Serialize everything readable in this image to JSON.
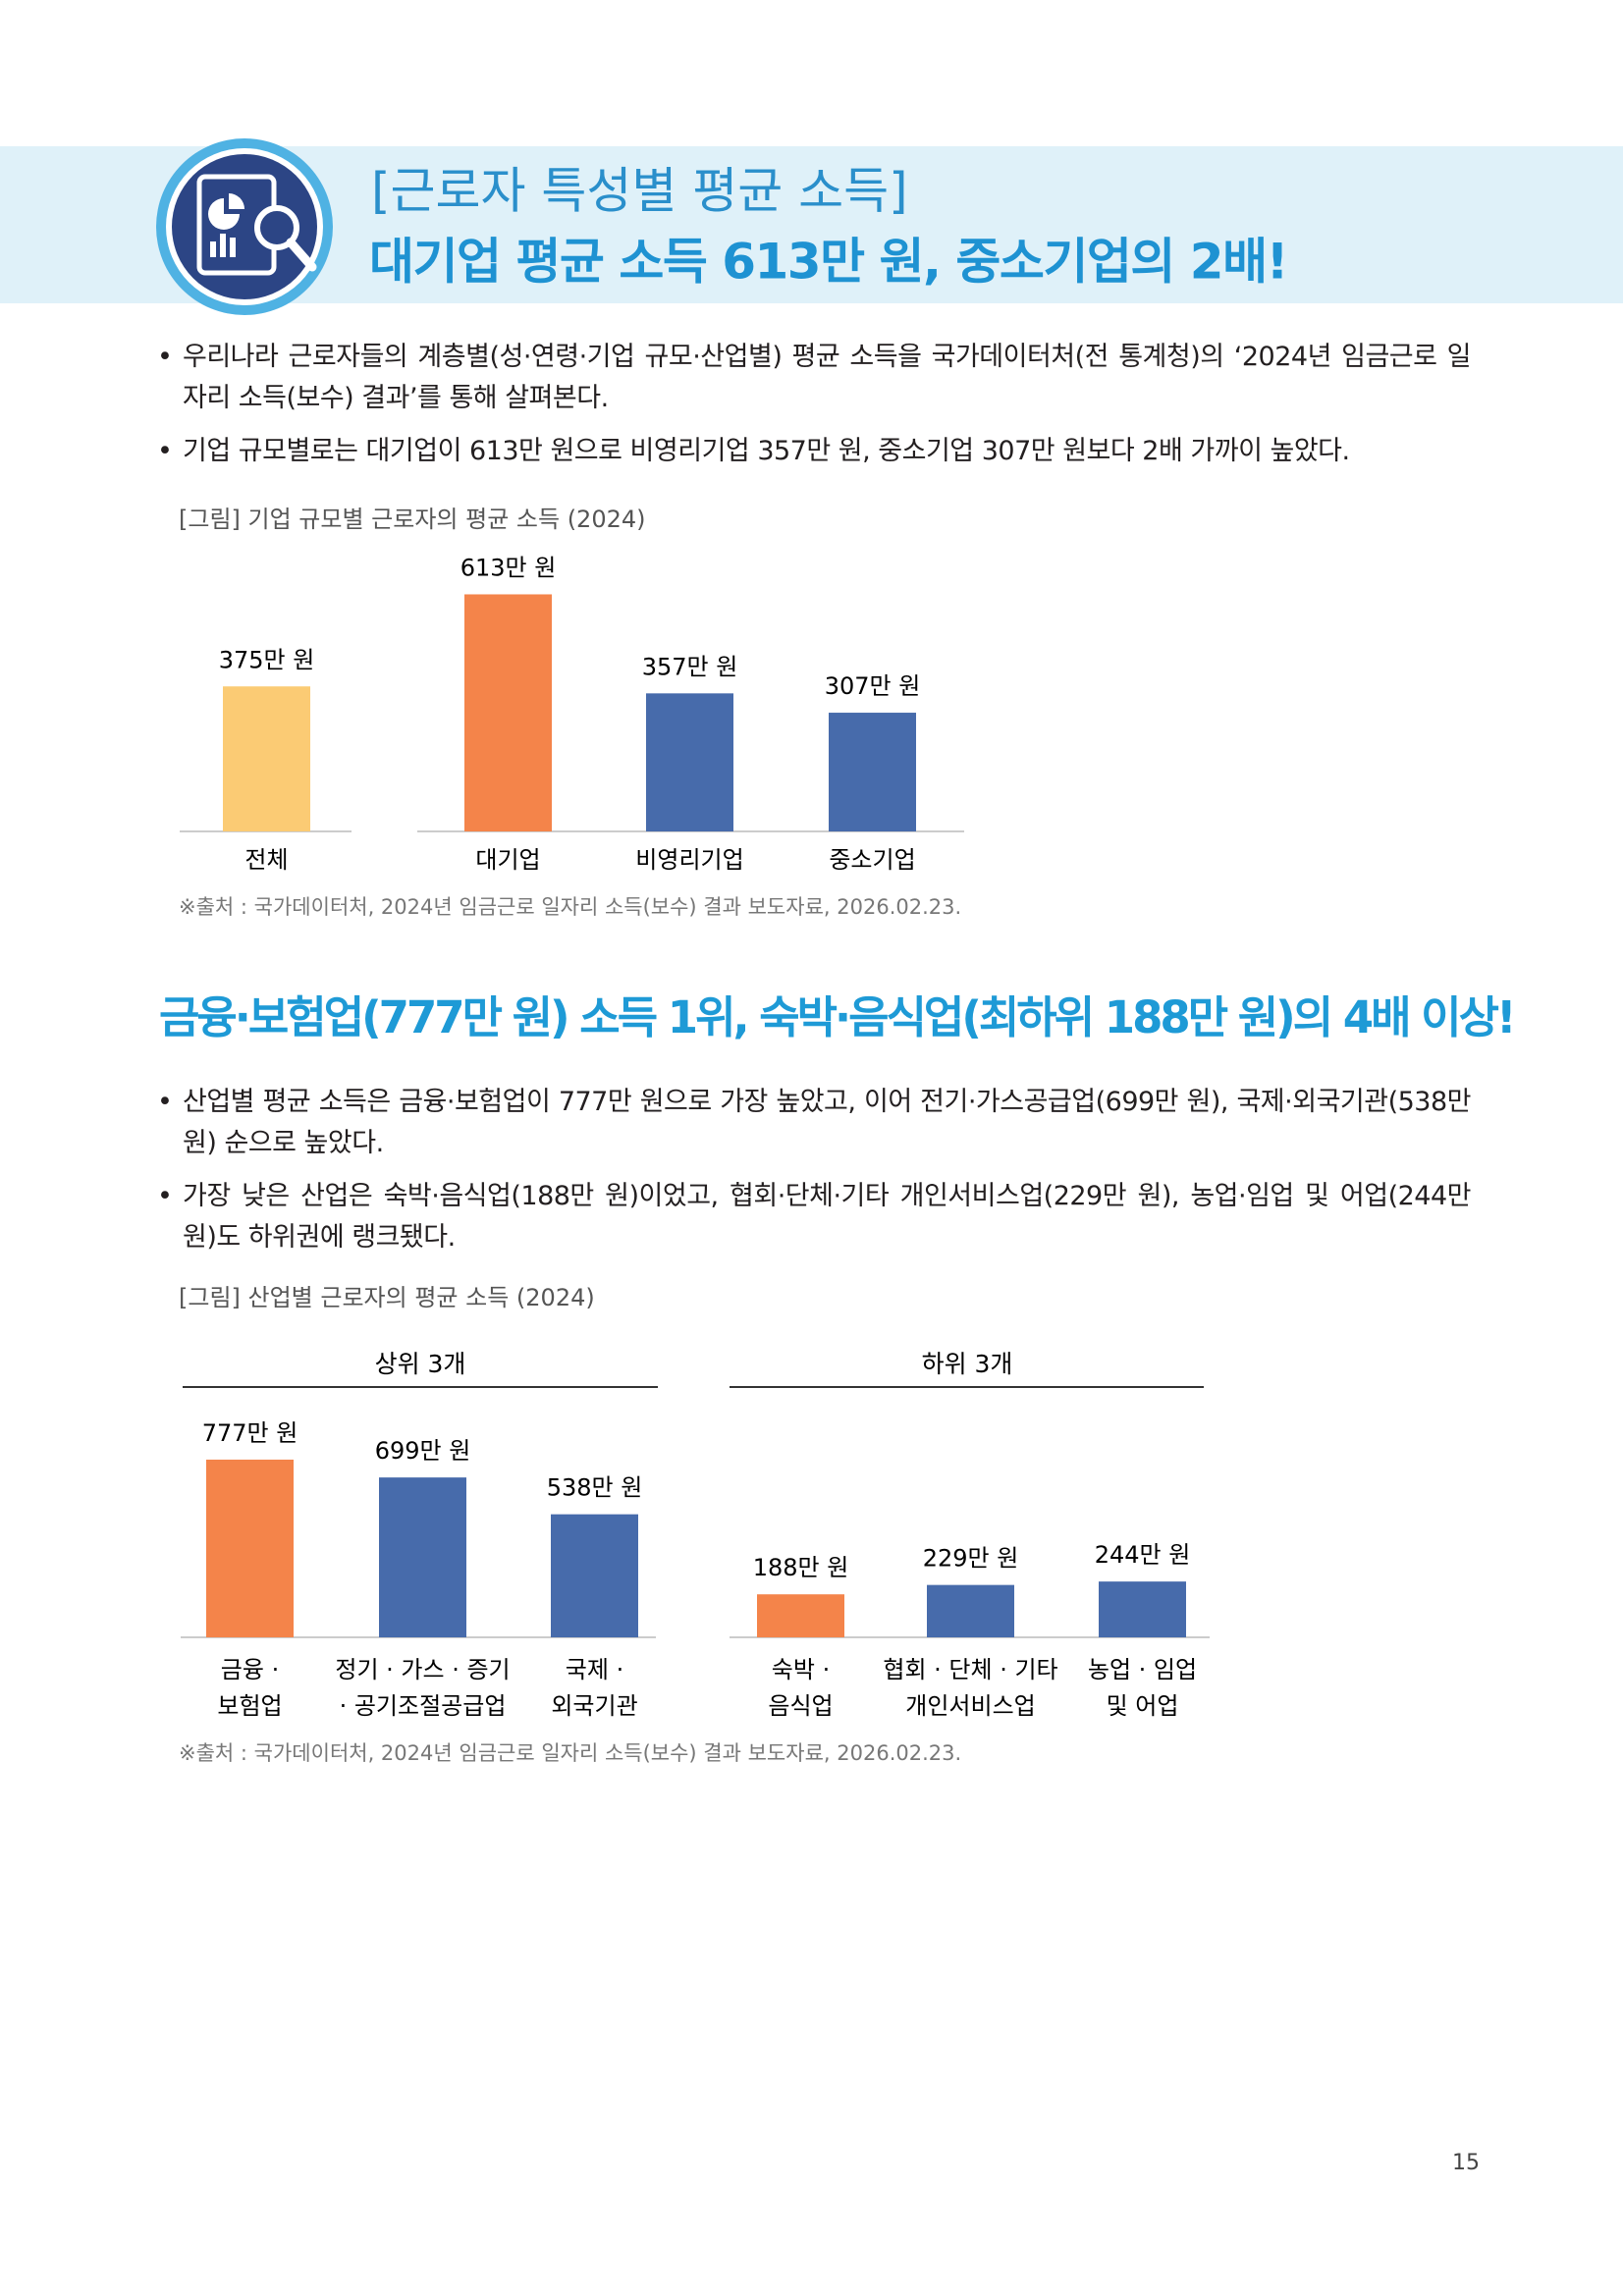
{
  "header": {
    "subtitle": "[근로자 특성별 평균 소득]",
    "title": "대기업 평균 소득 613만 원, 중소기업의 2배!"
  },
  "section1": {
    "bullets": [
      "우리나라 근로자들의 계층별(성·연령·기업 규모·산업별) 평균 소득을 국가데이터처(전 통계청)의 ‘2024년 임금근로 일자리 소득(보수) 결과’를 통해 살펴본다.",
      "기업 규모별로는 대기업이 613만 원으로 비영리기업 357만 원, 중소기업 307만 원보다 2배 가까이 높았다."
    ]
  },
  "section2": {
    "title": "금융·보험업(777만 원) 소득 1위, 숙박·음식업(최하위 188만 원)의 4배 이상!",
    "bullets": [
      "산업별 평균 소득은 금융·보험업이 777만 원으로 가장 높았고, 이어 전기·가스공급업(699만 원), 국제·외국기관(538만 원) 순으로 높았다.",
      "가장 낮은 산업은 숙박·음식업(188만 원)이었고, 협회·단체·기타 개인서비스업(229만 원), 농업·임업 및 어업(244만 원)도 하위권에 랭크됐다."
    ]
  },
  "chart_data": [
    {
      "type": "bar",
      "title": "[그림] 기업 규모별 근로자의 평균 소득 (2024)",
      "categories": [
        [
          "전체"
        ],
        [
          "대기업"
        ],
        [
          "비영리기업"
        ],
        [
          "중소기업"
        ]
      ],
      "values": [
        375,
        613,
        357,
        307
      ],
      "value_labels": [
        "375만 원",
        "613만 원",
        "357만 원",
        "307만 원"
      ],
      "colors": [
        "#fbcb74",
        "#f4844a",
        "#476bab",
        "#476bab"
      ],
      "source": "※출처 : 국가데이터처, 2024년 임금근로 일자리 소득(보수) 결과 보도자료, 2026.02.23."
    },
    {
      "type": "bar",
      "title": "[그림] 산업별 근로자의 평균 소득 (2024)",
      "panels": [
        {
          "subtitle": "상위 3개",
          "categories": [
            [
              "금융 ·",
              "보험업"
            ],
            [
              "정기 · 가스 · 증기",
              "· 공기조절공급업"
            ],
            [
              "국제 ·",
              "외국기관"
            ]
          ],
          "values": [
            777,
            699,
            538
          ],
          "value_labels": [
            "777만 원",
            "699만 원",
            "538만 원"
          ],
          "colors": [
            "#f4844a",
            "#476bab",
            "#476bab"
          ]
        },
        {
          "subtitle": "하위 3개",
          "categories": [
            [
              "숙박 ·",
              "음식업"
            ],
            [
              "협회 · 단체 · 기타",
              "개인서비스업"
            ],
            [
              "농업 · 임업",
              "및 어업"
            ]
          ],
          "values": [
            188,
            229,
            244
          ],
          "value_labels": [
            "188만 원",
            "229만 원",
            "244만 원"
          ],
          "colors": [
            "#f4844a",
            "#476bab",
            "#476bab"
          ]
        }
      ],
      "source": "※출처 : 국가데이터처, 2024년 임금근로 일자리 소득(보수) 결과 보도자료, 2026.02.23."
    }
  ],
  "page_number": "15"
}
